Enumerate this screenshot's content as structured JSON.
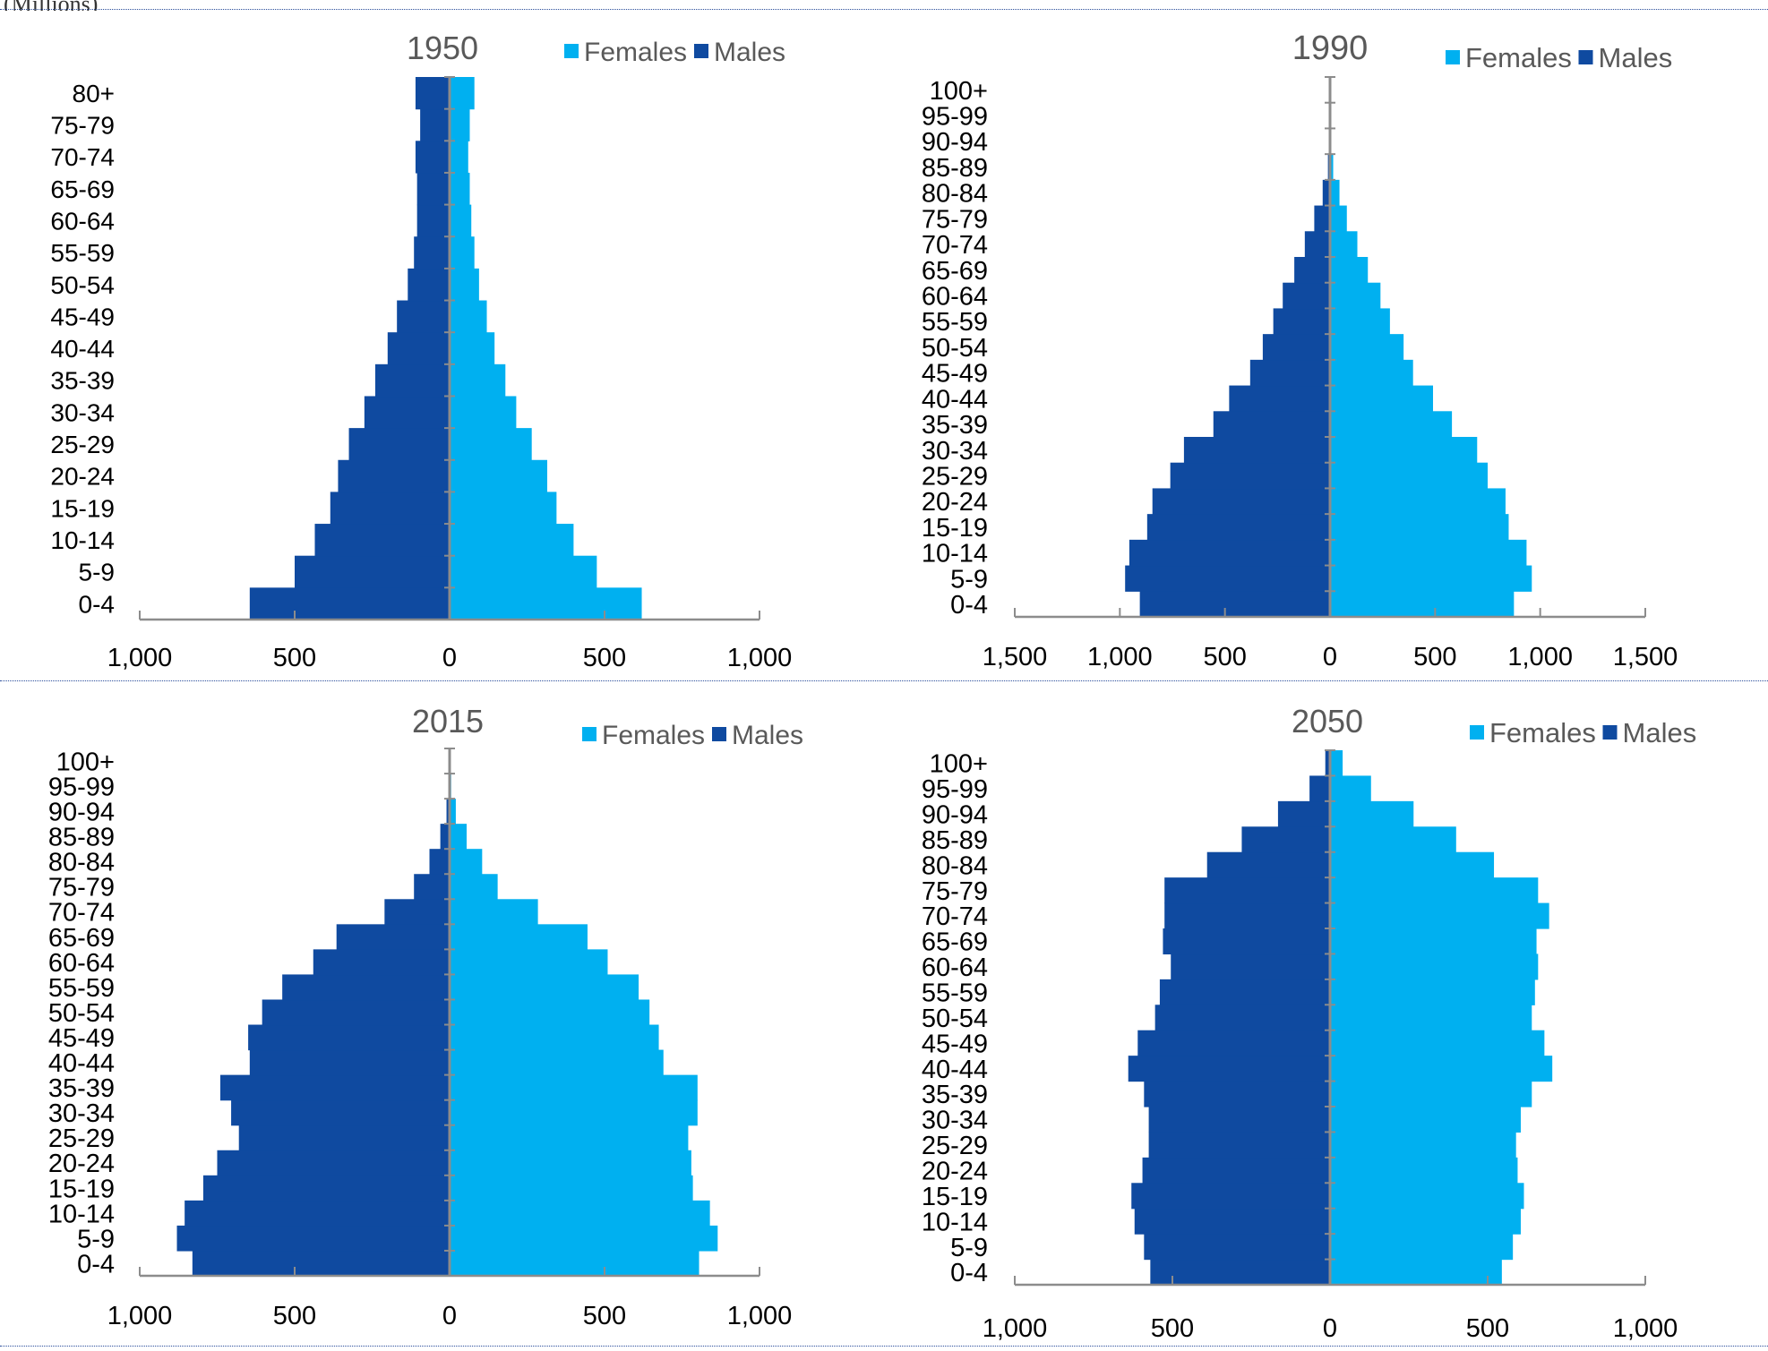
{
  "page": {
    "header_fragment": "(Millions)"
  },
  "colors": {
    "females": "#00b0f0",
    "males": "#0f4aa0",
    "axis": "#8c8c8c"
  },
  "legend": {
    "females": "Females",
    "males": "Males"
  },
  "chart_data": [
    {
      "type": "bar",
      "subtype": "population-pyramid",
      "title": "1950",
      "categories": [
        "0-4",
        "5-9",
        "10-14",
        "15-19",
        "20-24",
        "25-29",
        "30-34",
        "35-39",
        "40-44",
        "45-49",
        "50-54",
        "55-59",
        "60-64",
        "65-69",
        "70-74",
        "75-79",
        "80+"
      ],
      "series": [
        {
          "name": "Females",
          "values": [
            620,
            475,
            400,
            345,
            315,
            265,
            215,
            180,
            145,
            120,
            95,
            80,
            70,
            65,
            60,
            65,
            80
          ]
        },
        {
          "name": "Males",
          "values": [
            645,
            500,
            435,
            385,
            360,
            325,
            275,
            240,
            200,
            170,
            135,
            115,
            105,
            105,
            110,
            95,
            110
          ]
        }
      ],
      "xlim": [
        -1000,
        1000
      ],
      "xticks": [
        -1000,
        -500,
        0,
        500,
        1000
      ],
      "xtick_labels": [
        "1,000",
        "500",
        "0",
        "500",
        "1,000"
      ],
      "legend_position": "top-right"
    },
    {
      "type": "bar",
      "subtype": "population-pyramid",
      "title": "1990",
      "categories": [
        "0-4",
        "5-9",
        "10-14",
        "15-19",
        "20-24",
        "25-29",
        "30-34",
        "35-39",
        "40-44",
        "45-49",
        "50-54",
        "55-59",
        "60-64",
        "65-69",
        "70-74",
        "75-79",
        "80-84",
        "85-89",
        "90-94",
        "95-99",
        "100+"
      ],
      "series": [
        {
          "name": "Females",
          "values": [
            875,
            960,
            935,
            850,
            835,
            750,
            700,
            580,
            490,
            395,
            350,
            285,
            240,
            180,
            130,
            80,
            45,
            15,
            5,
            2,
            1
          ]
        },
        {
          "name": "Males",
          "values": [
            905,
            975,
            955,
            870,
            845,
            760,
            695,
            555,
            480,
            380,
            320,
            270,
            225,
            170,
            120,
            75,
            35,
            10,
            3,
            1,
            0
          ]
        }
      ],
      "xlim": [
        -1500,
        1500
      ],
      "xticks": [
        -1500,
        -1000,
        -500,
        0,
        500,
        1000,
        1500
      ],
      "xtick_labels": [
        "1,500",
        "1,000",
        "500",
        "0",
        "500",
        "1,000",
        "1,500"
      ],
      "legend_position": "top-right"
    },
    {
      "type": "bar",
      "subtype": "population-pyramid",
      "title": "2015",
      "categories": [
        "0-4",
        "5-9",
        "10-14",
        "15-19",
        "20-24",
        "25-29",
        "30-34",
        "35-39",
        "40-44",
        "45-49",
        "50-54",
        "55-59",
        "60-64",
        "65-69",
        "70-74",
        "75-79",
        "80-84",
        "85-89",
        "90-94",
        "95-99",
        "100+"
      ],
      "series": [
        {
          "name": "Females",
          "values": [
            805,
            865,
            840,
            785,
            780,
            770,
            800,
            800,
            690,
            675,
            645,
            610,
            510,
            445,
            285,
            155,
            105,
            55,
            20,
            5,
            1
          ]
        },
        {
          "name": "Males",
          "values": [
            830,
            880,
            855,
            795,
            750,
            680,
            705,
            740,
            645,
            650,
            605,
            540,
            440,
            365,
            210,
            115,
            65,
            30,
            10,
            3,
            0
          ]
        }
      ],
      "xlim": [
        -1000,
        1000
      ],
      "xticks": [
        -1000,
        -500,
        0,
        500,
        1000
      ],
      "xtick_labels": [
        "1,000",
        "500",
        "0",
        "500",
        "1,000"
      ],
      "legend_position": "top-right"
    },
    {
      "type": "bar",
      "subtype": "population-pyramid",
      "title": "2050",
      "categories": [
        "0-4",
        "5-9",
        "10-14",
        "15-19",
        "20-24",
        "25-29",
        "30-34",
        "35-39",
        "40-44",
        "45-49",
        "50-54",
        "55-59",
        "60-64",
        "65-69",
        "70-74",
        "75-79",
        "80-84",
        "85-89",
        "90-94",
        "95-99",
        "100+"
      ],
      "series": [
        {
          "name": "Females",
          "values": [
            545,
            580,
            605,
            615,
            595,
            590,
            605,
            640,
            705,
            680,
            640,
            650,
            660,
            655,
            695,
            660,
            520,
            400,
            265,
            130,
            40
          ]
        },
        {
          "name": "Males",
          "values": [
            570,
            590,
            620,
            630,
            595,
            575,
            575,
            590,
            640,
            610,
            555,
            540,
            505,
            530,
            525,
            525,
            390,
            280,
            165,
            65,
            15
          ]
        }
      ],
      "xlim": [
        -1000,
        1000
      ],
      "xticks": [
        -1000,
        -500,
        0,
        500,
        1000
      ],
      "xtick_labels": [
        "1,000",
        "500",
        "0",
        "500",
        "1,000"
      ],
      "legend_position": "top-right"
    }
  ]
}
